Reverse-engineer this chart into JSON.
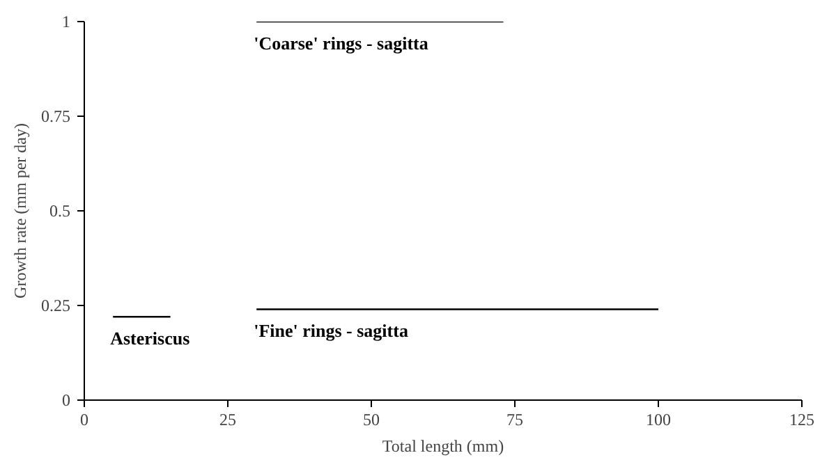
{
  "chart_data": {
    "type": "line",
    "xlabel": "Total length (mm)",
    "ylabel": "Growth rate (mm per day)",
    "xlim": [
      0,
      125
    ],
    "ylim": [
      0,
      1
    ],
    "xticks": [
      0,
      25,
      50,
      75,
      100,
      125
    ],
    "yticks": [
      0,
      0.25,
      0.5,
      0.75,
      1
    ],
    "grid": false,
    "marker": "none",
    "line_style": "solid",
    "series": [
      {
        "name": "Asteriscus",
        "color": "#000000",
        "x": [
          5,
          15
        ],
        "values": [
          0.22,
          0.22
        ]
      },
      {
        "name": "'Fine' rings - sagitta",
        "color": "#000000",
        "x": [
          30,
          100
        ],
        "values": [
          0.24,
          0.24
        ]
      },
      {
        "name": "'Coarse' rings - sagitta",
        "color": "#000000",
        "x": [
          30,
          73
        ],
        "values": [
          1,
          1
        ]
      }
    ]
  }
}
